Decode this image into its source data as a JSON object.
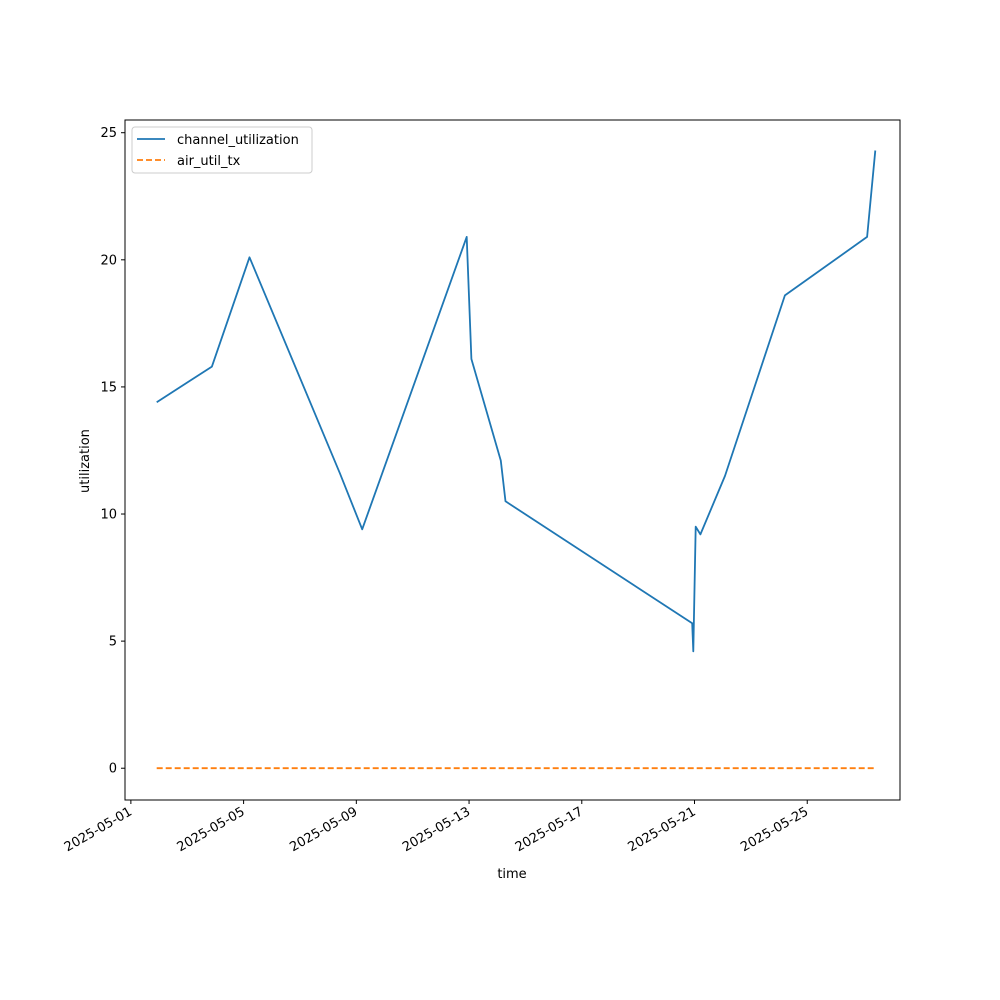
{
  "chart_data": {
    "type": "line",
    "title": "",
    "xlabel": "time",
    "ylabel": "utilization",
    "x_tick_labels": [
      "2025-05-01",
      "2025-05-05",
      "2025-05-09",
      "2025-05-13",
      "2025-05-17",
      "2025-05-21",
      "2025-05-25"
    ],
    "y_ticks": [
      0,
      5,
      10,
      15,
      20,
      25
    ],
    "xlim": [
      "2025-04-30T19:00",
      "2025-05-28T07:00"
    ],
    "ylim": [
      -1.25,
      25.5
    ],
    "grid": false,
    "legend_position": "top-left",
    "series": [
      {
        "name": "channel_utilization",
        "color": "#1f77b4",
        "style": "solid",
        "points": [
          [
            "2025-05-01T22:00",
            14.4
          ],
          [
            "2025-05-03T21:00",
            15.8
          ],
          [
            "2025-05-05T05:00",
            20.1
          ],
          [
            "2025-05-08T10:00",
            11.6
          ],
          [
            "2025-05-09T05:00",
            9.4
          ],
          [
            "2025-05-12T22:00",
            20.9
          ],
          [
            "2025-05-13T02:00",
            16.1
          ],
          [
            "2025-05-14T03:00",
            12.1
          ],
          [
            "2025-05-14T07:00",
            10.5
          ],
          [
            "2025-05-20T22:00",
            5.7
          ],
          [
            "2025-05-20T23:00",
            4.6
          ],
          [
            "2025-05-21T01:00",
            9.5
          ],
          [
            "2025-05-21T05:00",
            9.2
          ],
          [
            "2025-05-22T02:00",
            11.5
          ],
          [
            "2025-05-24T05:00",
            18.6
          ],
          [
            "2025-05-27T03:00",
            20.9
          ],
          [
            "2025-05-27T10:00",
            24.3
          ]
        ]
      },
      {
        "name": "air_util_tx",
        "color": "#ff7f0e",
        "style": "dashed",
        "points": [
          [
            "2025-05-01T22:00",
            0
          ],
          [
            "2025-05-27T10:00",
            0
          ]
        ]
      }
    ]
  }
}
